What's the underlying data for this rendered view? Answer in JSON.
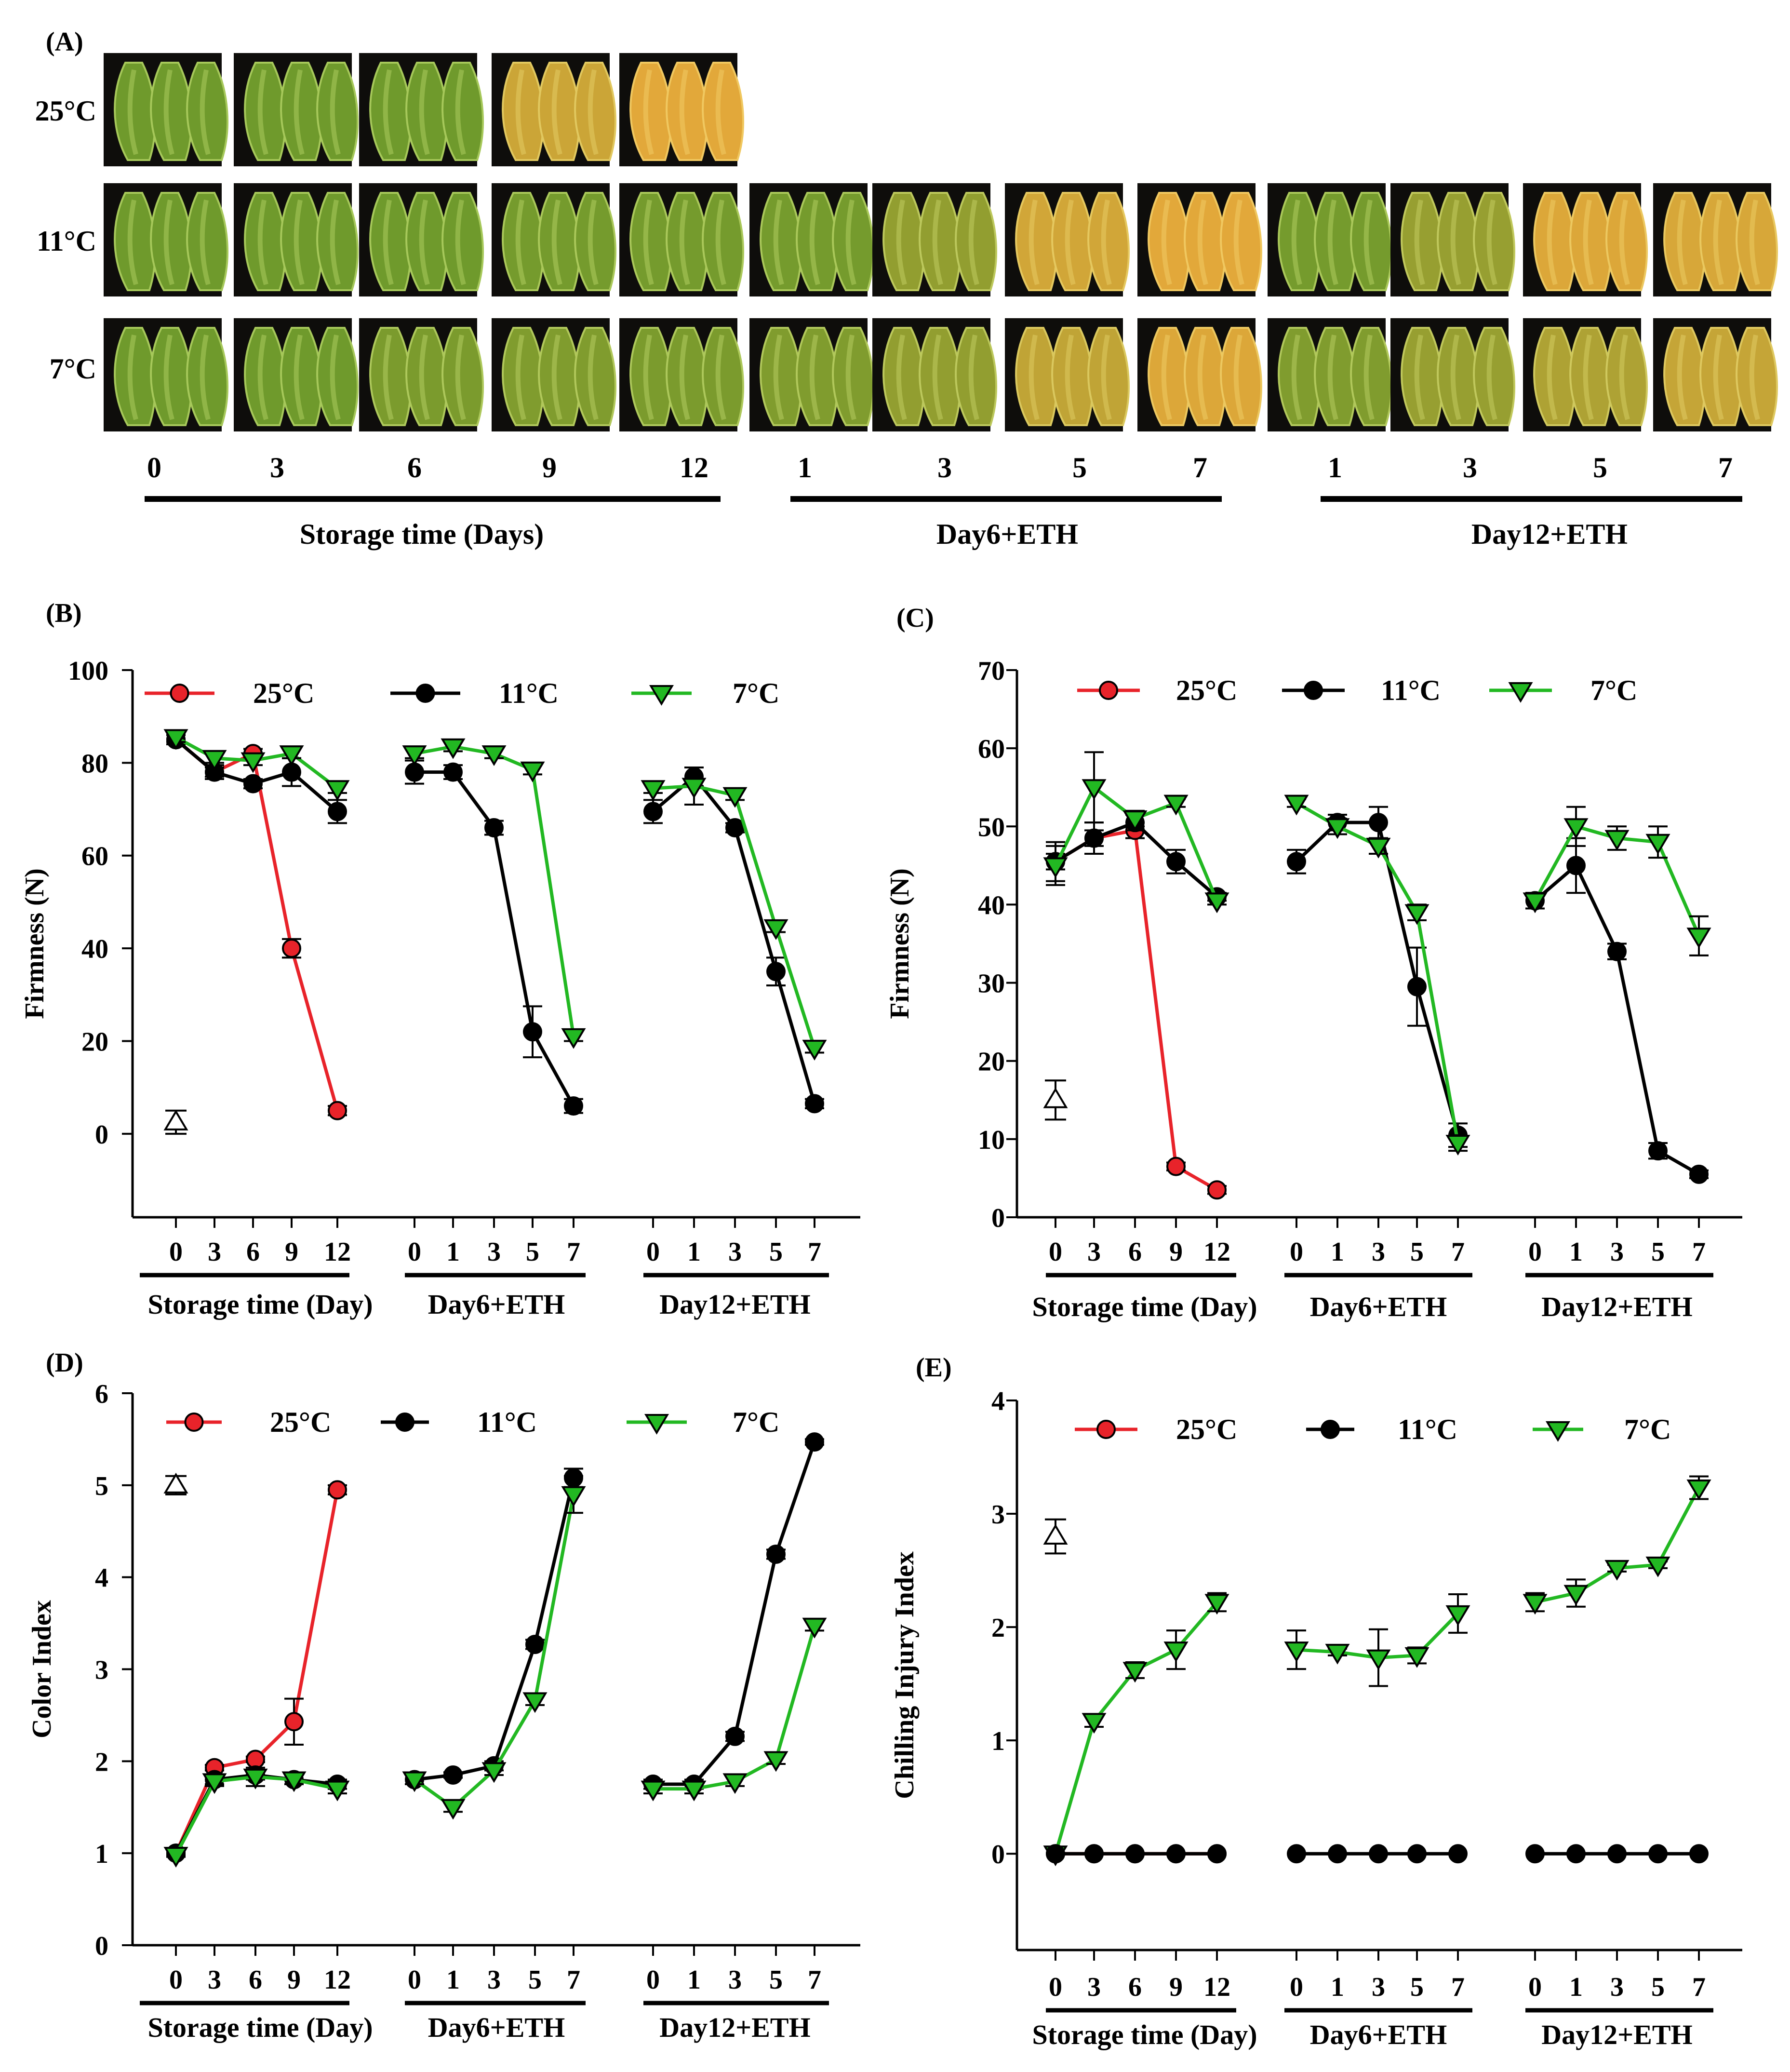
{
  "panel_a": {
    "label": "(A)",
    "rows": [
      "25°C",
      "11°C",
      "7°C"
    ],
    "tick_labels": [
      "0",
      "3",
      "6",
      "9",
      "12",
      "1",
      "3",
      "5",
      "7",
      "1",
      "3",
      "5",
      "7"
    ],
    "group_labels": [
      "Storage time (Days)",
      "Day6+ETH",
      "Day12+ETH"
    ]
  },
  "colors": {
    "c25": "#e8232a",
    "c11": "#000000",
    "c7": "#22b822",
    "background": "#ffffff",
    "photo_bg": "#0e0d0b"
  },
  "legend_labels": [
    "25°C",
    "11°C",
    "7°C"
  ],
  "x_tick_labels": [
    "0",
    "3",
    "6",
    "9",
    "12",
    "0",
    "1",
    "3",
    "5",
    "7",
    "0",
    "1",
    "3",
    "5",
    "7"
  ],
  "x_group_labels": [
    "Storage time (Day)",
    "Day6+ETH",
    "Day12+ETH"
  ],
  "chart_data": [
    {
      "id": "B",
      "label": "(B)",
      "type": "line",
      "ylabel": "Firmness (N)",
      "ylim": [
        -18,
        100
      ],
      "yticks": [
        0,
        20,
        40,
        60,
        80,
        100
      ],
      "initial": {
        "value": 2.5,
        "err": 2.5
      },
      "series": [
        {
          "name": "25°C",
          "key": "c25",
          "marker": "circle",
          "values": [
            85,
            78,
            82,
            40,
            5,
            null,
            null,
            null,
            null,
            null,
            null,
            null,
            null,
            null,
            null
          ],
          "errors": [
            1,
            1,
            1,
            2,
            1,
            null,
            null,
            null,
            null,
            null,
            null,
            null,
            null,
            null,
            null
          ]
        },
        {
          "name": "11°C",
          "key": "c11",
          "marker": "circle",
          "values": [
            85,
            78,
            75.5,
            78,
            69.5,
            78,
            78,
            66,
            22,
            6,
            69.5,
            77,
            66,
            35,
            6.5
          ],
          "errors": [
            1,
            1.5,
            1,
            3,
            2.5,
            2.5,
            1.5,
            1.5,
            5.5,
            1.5,
            2.5,
            2,
            1,
            3,
            1
          ]
        },
        {
          "name": "7°C",
          "key": "c7",
          "marker": "tri",
          "values": [
            85.5,
            81,
            80.5,
            82,
            74.5,
            82,
            83.5,
            82,
            78.5,
            21,
            74.5,
            75,
            73,
            44.5,
            18.5
          ],
          "errors": [
            1,
            1,
            1,
            1,
            1,
            1,
            1,
            1,
            1,
            1,
            1,
            4,
            1,
            1,
            1
          ]
        }
      ]
    },
    {
      "id": "C",
      "label": "(C)",
      "type": "line",
      "ylabel": "Firmness (N)",
      "ylim": [
        0,
        70
      ],
      "yticks": [
        0,
        10,
        20,
        30,
        40,
        50,
        60,
        70
      ],
      "initial": {
        "value": 15,
        "err": 2.5
      },
      "series": [
        {
          "name": "25°C",
          "key": "c25",
          "marker": "circle",
          "values": [
            45.5,
            48.5,
            49.5,
            6.5,
            3.5,
            null,
            null,
            null,
            null,
            null,
            null,
            null,
            null,
            null,
            null
          ],
          "errors": [
            1,
            1,
            1,
            0.5,
            0.5,
            null,
            null,
            null,
            null,
            null,
            null,
            null,
            null,
            null,
            null
          ]
        },
        {
          "name": "11°C",
          "key": "c11",
          "marker": "circle",
          "values": [
            45.5,
            48.5,
            50.5,
            45.5,
            41,
            45.5,
            50.5,
            50.5,
            29.5,
            10.5,
            40.5,
            45,
            34,
            8.5,
            5.5
          ],
          "errors": [
            2.5,
            2,
            1,
            1.5,
            0.5,
            1.5,
            1,
            2,
            5,
            1.5,
            1,
            3.5,
            1,
            1,
            0.5
          ]
        },
        {
          "name": "7°C",
          "key": "c7",
          "marker": "tri",
          "values": [
            45,
            55,
            51,
            53,
            40.5,
            53,
            50,
            47.5,
            39,
            9.5,
            40.5,
            50,
            48.5,
            48,
            36
          ],
          "errors": [
            2.5,
            4.5,
            1,
            0.5,
            0.5,
            0.5,
            1,
            1,
            1,
            1,
            1,
            2.5,
            1.5,
            2,
            2.5
          ]
        }
      ]
    },
    {
      "id": "D",
      "label": "(D)",
      "type": "line",
      "ylabel": "Color Index",
      "ylim": [
        0,
        6
      ],
      "yticks": [
        0,
        1,
        2,
        3,
        4,
        5,
        6
      ],
      "initial": {
        "value": 5,
        "err": 0.1
      },
      "series": [
        {
          "name": "25°C",
          "key": "c25",
          "marker": "circle",
          "values": [
            1,
            1.93,
            2.02,
            2.43,
            4.95,
            null,
            null,
            null,
            null,
            null,
            null,
            null,
            null,
            null,
            null
          ],
          "errors": [
            0.02,
            0.03,
            0.03,
            0.25,
            0.05,
            null,
            null,
            null,
            null,
            null,
            null,
            null,
            null,
            null,
            null
          ]
        },
        {
          "name": "11°C",
          "key": "c11",
          "marker": "circle",
          "values": [
            1,
            1.8,
            1.85,
            1.8,
            1.75,
            1.8,
            1.85,
            1.95,
            3.27,
            5.08,
            1.75,
            1.75,
            2.27,
            4.25,
            5.47
          ],
          "errors": [
            0.02,
            0.05,
            0.05,
            0.05,
            0.05,
            0.05,
            0.03,
            0.05,
            0.05,
            0.1,
            0.05,
            0.05,
            0.05,
            0.05,
            0.03
          ]
        },
        {
          "name": "7°C",
          "key": "c7",
          "marker": "tri",
          "values": [
            0.98,
            1.78,
            1.83,
            1.8,
            1.7,
            1.8,
            1.5,
            1.9,
            2.66,
            4.9,
            1.7,
            1.7,
            1.78,
            2.02,
            3.47
          ],
          "errors": [
            0.02,
            0.05,
            0.1,
            0.05,
            0.05,
            0.05,
            0.05,
            0.05,
            0.05,
            0.2,
            0.05,
            0.05,
            0.05,
            0.05,
            0.05
          ]
        }
      ]
    },
    {
      "id": "E",
      "label": "(E)",
      "type": "line",
      "ylabel": "Chilling Injury Index",
      "ylim": [
        -0.85,
        4
      ],
      "yticks": [
        0,
        1,
        2,
        3,
        4
      ],
      "initial": {
        "value": 2.8,
        "err": 0.15
      },
      "series": [
        {
          "name": "25°C",
          "key": "c25",
          "marker": "circle",
          "values": [
            0,
            0,
            0,
            0,
            0,
            null,
            null,
            null,
            null,
            null,
            null,
            null,
            null,
            null,
            null
          ],
          "errors": [
            0,
            0,
            0,
            0,
            0,
            null,
            null,
            null,
            null,
            null,
            null,
            null,
            null,
            null,
            null
          ]
        },
        {
          "name": "11°C",
          "key": "c11",
          "marker": "circle",
          "values": [
            0,
            0,
            0,
            0,
            0,
            0,
            0,
            0,
            0,
            0,
            0,
            0,
            0,
            0,
            0
          ],
          "errors": [
            0,
            0,
            0,
            0,
            0,
            0,
            0,
            0,
            0,
            0,
            0,
            0,
            0,
            0,
            0
          ]
        },
        {
          "name": "7°C",
          "key": "c7",
          "marker": "tri",
          "values": [
            0,
            1.17,
            1.62,
            1.8,
            2.22,
            1.8,
            1.78,
            1.73,
            1.75,
            2.12,
            2.22,
            2.3,
            2.52,
            2.55,
            3.23
          ],
          "errors": [
            0,
            0.05,
            0.07,
            0.17,
            0.08,
            0.17,
            0.03,
            0.25,
            0.07,
            0.17,
            0.08,
            0.12,
            0.03,
            0.03,
            0.1
          ]
        }
      ]
    }
  ]
}
